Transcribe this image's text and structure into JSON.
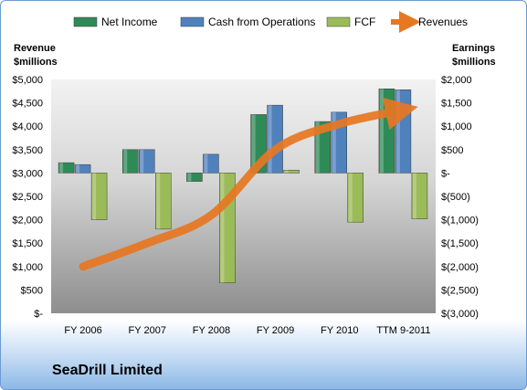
{
  "company_label": "SeaDrill Limited",
  "chart_data": {
    "type": "bar",
    "categories": [
      "FY 2006",
      "FY 2007",
      "FY 2008",
      "FY 2009",
      "FY 2010",
      "TTM 9-2011"
    ],
    "series": [
      {
        "name": "Net Income",
        "axis": "right",
        "kind": "bar",
        "color": "#2e8b57",
        "values": [
          220,
          500,
          -180,
          1250,
          1100,
          1800
        ]
      },
      {
        "name": "Cash from Operations",
        "axis": "right",
        "kind": "bar",
        "color": "#4f81bd",
        "values": [
          180,
          500,
          400,
          1450,
          1300,
          1780
        ]
      },
      {
        "name": "FCF",
        "axis": "right",
        "kind": "bar",
        "color": "#9bbb59",
        "values": [
          -1000,
          -1200,
          -2350,
          60,
          -1050,
          -980
        ]
      },
      {
        "name": "Revenues",
        "axis": "left",
        "kind": "line",
        "color": "#e87722",
        "values": [
          1000,
          1500,
          2100,
          3500,
          4050,
          4350
        ]
      }
    ],
    "y_left": {
      "title_line1": "Revenue",
      "title_line2": "$millions",
      "min": 0,
      "max": 5000,
      "step": 500,
      "tick_labels": [
        "$-",
        "$500",
        "$1,000",
        "$1,500",
        "$2,000",
        "$2,500",
        "$3,000",
        "$3,500",
        "$4,000",
        "$4,500",
        "$5,000"
      ]
    },
    "y_right": {
      "title_line1": "Earnings",
      "title_line2": "$millions",
      "min": -3000,
      "max": 2000,
      "step": 500,
      "tick_labels": [
        "$(3,000)",
        "$(2,500)",
        "$(2,000)",
        "$(1,500)",
        "$(1,000)",
        "$(500)",
        "$-",
        "$500",
        "$1,000",
        "$1,500",
        "$2,000"
      ]
    },
    "legend_position": "top",
    "grid": false
  }
}
